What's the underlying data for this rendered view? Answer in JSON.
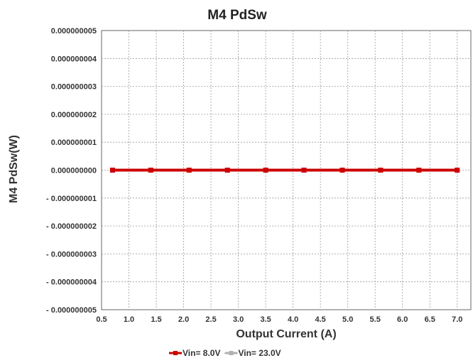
{
  "chart_data": {
    "type": "line",
    "title": "M4 PdSw",
    "xlabel": "Output Current (A)",
    "ylabel": "M4 PdSw(W)",
    "xlim": [
      0.5,
      7.25
    ],
    "ylim": [
      -5e-09,
      5e-09
    ],
    "x_ticks": [
      0.5,
      1.0,
      1.5,
      2.0,
      2.5,
      3.0,
      3.5,
      4.0,
      4.5,
      5.0,
      5.5,
      6.0,
      6.5,
      7.0
    ],
    "x_tick_labels": [
      "0.5",
      "1.0",
      "1.5",
      "2.0",
      "2.5",
      "3.0",
      "3.5",
      "4.0",
      "4.5",
      "5.0",
      "5.5",
      "6.0",
      "6.5",
      "7.0"
    ],
    "y_ticks": [
      5e-09,
      4e-09,
      3e-09,
      2e-09,
      1e-09,
      0,
      -1e-09,
      -2e-09,
      -3e-09,
      -4e-09,
      -5e-09
    ],
    "y_tick_labels": [
      "0.000000005",
      "0.000000004",
      "0.000000003",
      "0.000000002",
      "0.000000001",
      "0.000000000",
      "- 0.000000001",
      "- 0.000000002",
      "- 0.000000003",
      "- 0.000000004",
      "- 0.000000005"
    ],
    "grid": true,
    "legend_position": "bottom",
    "series": [
      {
        "name": "Vin= 8.0V",
        "color": "#cc0000",
        "x": [
          0.7,
          1.4,
          2.1,
          2.8,
          3.5,
          4.2,
          4.9,
          5.6,
          6.3,
          7.0
        ],
        "y": [
          0,
          0,
          0,
          0,
          0,
          0,
          0,
          0,
          0,
          0
        ]
      },
      {
        "name": "Vin= 23.0V",
        "color": "#b0b0b0",
        "x": [
          0.7,
          1.4,
          2.1,
          2.8,
          3.5,
          4.2,
          4.9,
          5.6,
          6.3,
          7.0
        ],
        "y": [
          0,
          0,
          0,
          0,
          0,
          0,
          0,
          0,
          0,
          0
        ]
      }
    ]
  }
}
